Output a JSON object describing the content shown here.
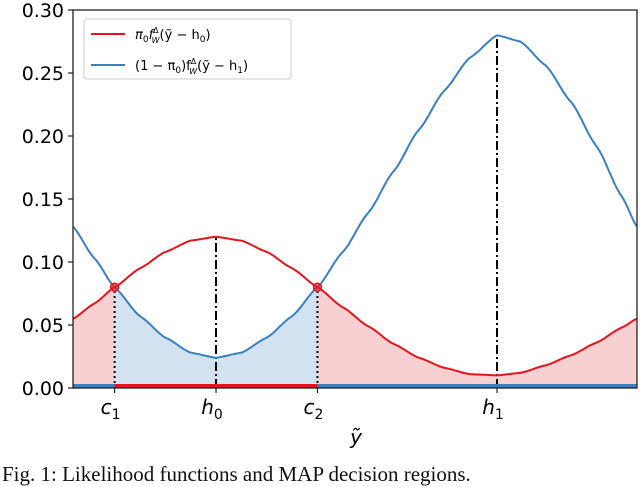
{
  "chart_data": {
    "type": "line",
    "title": "",
    "xlabel": "ỹ",
    "ylabel": "",
    "xlim": [
      -1.41,
      4.15
    ],
    "ylim": [
      0.0,
      0.3
    ],
    "grid": false,
    "legend_position": "upper left",
    "yticks": [
      "0.00",
      "0.05",
      "0.10",
      "0.15",
      "0.20",
      "0.25",
      "0.30"
    ],
    "ytick_values": [
      0.0,
      0.05,
      0.1,
      0.15,
      0.2,
      0.25,
      0.3
    ],
    "xticks": [
      {
        "label": "c",
        "sub": "1",
        "x": -1.0
      },
      {
        "label": "h",
        "sub": "0",
        "x": 0.0
      },
      {
        "label": "c",
        "sub": "2",
        "x": 1.0
      },
      {
        "label": "h",
        "sub": "1",
        "x": 2.77
      }
    ],
    "x": [
      -1.41,
      -1.2,
      -1.0,
      -0.75,
      -0.5,
      -0.25,
      0.0,
      0.25,
      0.5,
      0.75,
      1.0,
      1.25,
      1.5,
      1.75,
      2.0,
      2.25,
      2.5,
      2.77,
      3.0,
      3.25,
      3.5,
      3.75,
      4.0,
      4.15
    ],
    "series": [
      {
        "name": "π₀f_W^Δ(ỹ − h₀)",
        "legend_label": "π₀f",
        "color": "#e8141c",
        "fill": "#f9d0d1",
        "values": [
          0.055,
          0.067,
          0.08,
          0.095,
          0.108,
          0.117,
          0.12,
          0.117,
          0.108,
          0.095,
          0.08,
          0.064,
          0.049,
          0.035,
          0.024,
          0.016,
          0.011,
          0.01,
          0.012,
          0.018,
          0.026,
          0.036,
          0.048,
          0.055
        ]
      },
      {
        "name": "(1 − π₀)f_W^Δ(ỹ − h₁)",
        "legend_label": "(1 − π₀)f",
        "color": "#3a7fc1",
        "fill": "#d3e2f1",
        "values": [
          0.128,
          0.103,
          0.08,
          0.057,
          0.04,
          0.028,
          0.024,
          0.028,
          0.04,
          0.057,
          0.08,
          0.108,
          0.139,
          0.172,
          0.205,
          0.236,
          0.262,
          0.28,
          0.275,
          0.256,
          0.227,
          0.192,
          0.152,
          0.128
        ]
      }
    ],
    "annotations": {
      "intersections": [
        {
          "x": -1.0,
          "y": 0.08
        },
        {
          "x": 1.0,
          "y": 0.08
        }
      ],
      "dashdot_verticals": [
        {
          "x": 0.0,
          "ymax": 0.12
        },
        {
          "x": 2.77,
          "ymax": 0.28
        }
      ],
      "dotted_verticals": [
        {
          "x": -1.0,
          "ymax": 0.08
        },
        {
          "x": 1.0,
          "ymax": 0.08
        }
      ],
      "decision_region_h0": [
        -1.0,
        1.0
      ]
    }
  },
  "legend": {
    "entries": [
      {
        "prefix": "π",
        "sub0": "0",
        "mid": "f",
        "sup": "Δ",
        "subW": "W",
        "args": "(ỹ − h",
        "argsub": "0",
        "close": ")"
      },
      {
        "prefix": "(1 − π",
        "sub0": "0",
        "mid": ")f",
        "sup": "Δ",
        "subW": "W",
        "args": "(ỹ − h",
        "argsub": "1",
        "close": ")"
      }
    ]
  },
  "caption": "Fig. 1: Likelihood functions and MAP decision regions."
}
